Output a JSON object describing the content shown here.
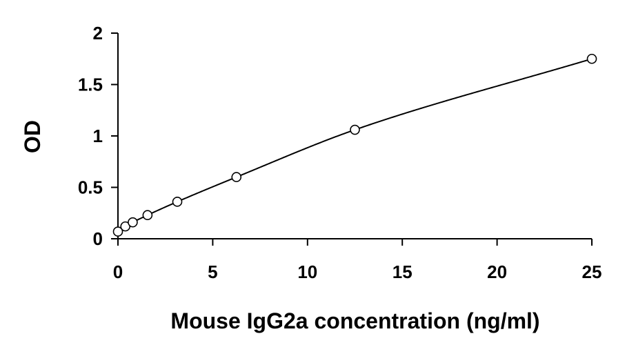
{
  "chart_data": {
    "type": "scatter",
    "title": "",
    "xlabel": "Mouse IgG2a concentration (ng/ml)",
    "ylabel": "OD",
    "xlim": [
      0,
      25
    ],
    "ylim": [
      0,
      2
    ],
    "x_ticks": [
      0,
      5,
      10,
      15,
      20,
      25
    ],
    "y_ticks": [
      0,
      0.5,
      1,
      1.5,
      2
    ],
    "x_tick_labels": [
      "0",
      "5",
      "10",
      "15",
      "20",
      "25"
    ],
    "y_tick_labels": [
      "0",
      "0.5",
      "1",
      "1.5",
      "2"
    ],
    "grid": false,
    "legend": "none",
    "series": [
      {
        "marker": "open-circle",
        "fit": "smooth-curve",
        "points": [
          {
            "x": 0,
            "y": 0.07
          },
          {
            "x": 0.39,
            "y": 0.12
          },
          {
            "x": 0.78,
            "y": 0.16
          },
          {
            "x": 1.56,
            "y": 0.23
          },
          {
            "x": 3.13,
            "y": 0.36
          },
          {
            "x": 6.25,
            "y": 0.6
          },
          {
            "x": 12.5,
            "y": 1.06
          },
          {
            "x": 25,
            "y": 1.75
          }
        ]
      }
    ],
    "colors": {
      "line": "#000000",
      "marker": "#000000",
      "axis": "#000000"
    }
  }
}
